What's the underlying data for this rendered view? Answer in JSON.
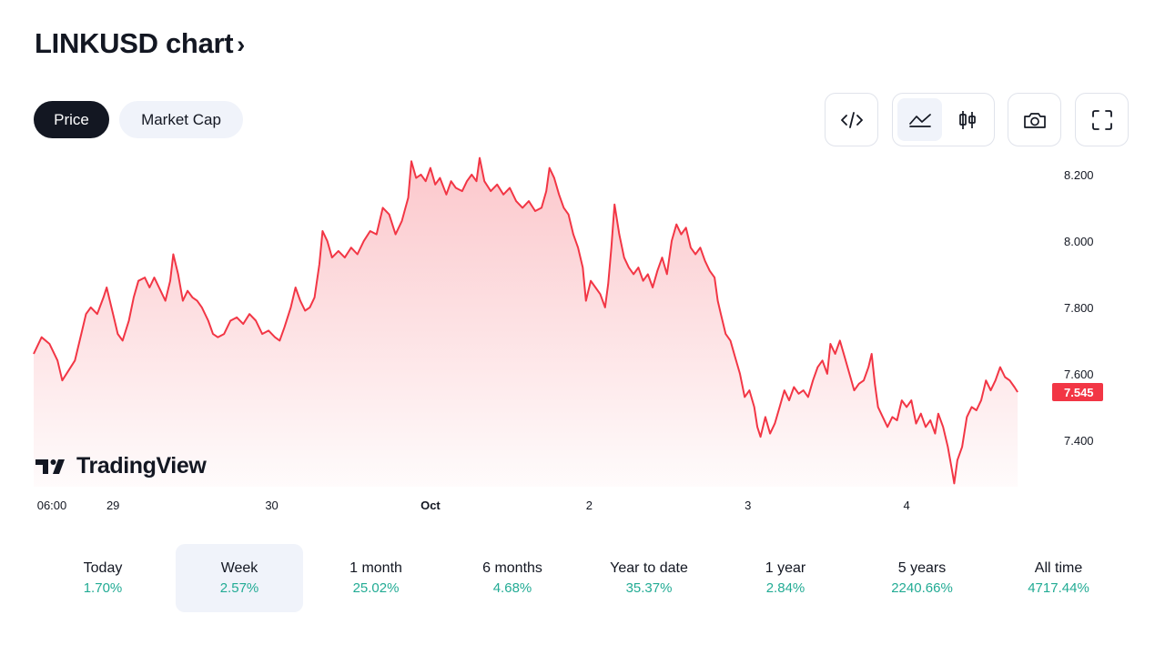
{
  "header": {
    "title": "LINKUSD chart",
    "title_chevron": "›"
  },
  "mode_tabs": [
    {
      "label": "Price",
      "active": true
    },
    {
      "label": "Market Cap",
      "active": false
    }
  ],
  "toolbar": {
    "icons": [
      "embed-code-icon",
      "area-chart-icon",
      "candlestick-chart-icon",
      "camera-icon",
      "fullscreen-icon"
    ],
    "active_chart_type": "area"
  },
  "watermark": {
    "brand": "TradingView"
  },
  "colors": {
    "line": "#f23645",
    "fill_top": "rgba(242,54,69,0.28)",
    "fill_bottom": "rgba(242,54,69,0.02)",
    "price_badge": "#f23645",
    "positive": "#22ab94",
    "active_tab_bg": "#131722",
    "chip_bg": "#f0f3fa"
  },
  "chart_data": {
    "type": "area",
    "title": "",
    "xlabel": "",
    "ylabel": "",
    "ylim": [
      7.26,
      8.26
    ],
    "y_ticks": [
      "8.200",
      "8.000",
      "7.800",
      "7.600",
      "7.400"
    ],
    "y_tick_values": [
      8.2,
      8.0,
      7.8,
      7.6,
      7.4
    ],
    "x_tick_labels": [
      "06:00",
      "29",
      "30",
      "Oct",
      "2",
      "3",
      "4"
    ],
    "x_tick_times": [
      0,
      0.5,
      1.5,
      2.5,
      3.5,
      4.5,
      5.5
    ],
    "x_range": [
      0,
      6.4
    ],
    "last_price": "7.545",
    "last_value": 7.545,
    "series": [
      {
        "points": [
          [
            0.0,
            7.66
          ],
          [
            0.05,
            7.71
          ],
          [
            0.1,
            7.69
          ],
          [
            0.15,
            7.64
          ],
          [
            0.18,
            7.58
          ],
          [
            0.22,
            7.61
          ],
          [
            0.26,
            7.64
          ],
          [
            0.3,
            7.72
          ],
          [
            0.33,
            7.78
          ],
          [
            0.36,
            7.8
          ],
          [
            0.4,
            7.78
          ],
          [
            0.44,
            7.83
          ],
          [
            0.46,
            7.86
          ],
          [
            0.5,
            7.78
          ],
          [
            0.53,
            7.72
          ],
          [
            0.56,
            7.7
          ],
          [
            0.6,
            7.76
          ],
          [
            0.63,
            7.83
          ],
          [
            0.66,
            7.88
          ],
          [
            0.7,
            7.89
          ],
          [
            0.73,
            7.86
          ],
          [
            0.76,
            7.89
          ],
          [
            0.8,
            7.85
          ],
          [
            0.83,
            7.82
          ],
          [
            0.86,
            7.88
          ],
          [
            0.88,
            7.96
          ],
          [
            0.91,
            7.9
          ],
          [
            0.94,
            7.82
          ],
          [
            0.97,
            7.85
          ],
          [
            1.0,
            7.83
          ],
          [
            1.03,
            7.82
          ],
          [
            1.06,
            7.8
          ],
          [
            1.1,
            7.76
          ],
          [
            1.13,
            7.72
          ],
          [
            1.16,
            7.71
          ],
          [
            1.2,
            7.72
          ],
          [
            1.24,
            7.76
          ],
          [
            1.28,
            7.77
          ],
          [
            1.32,
            7.75
          ],
          [
            1.36,
            7.78
          ],
          [
            1.4,
            7.76
          ],
          [
            1.44,
            7.72
          ],
          [
            1.48,
            7.73
          ],
          [
            1.52,
            7.71
          ],
          [
            1.55,
            7.7
          ],
          [
            1.58,
            7.74
          ],
          [
            1.62,
            7.8
          ],
          [
            1.65,
            7.86
          ],
          [
            1.68,
            7.82
          ],
          [
            1.71,
            7.79
          ],
          [
            1.74,
            7.8
          ],
          [
            1.77,
            7.83
          ],
          [
            1.8,
            7.93
          ],
          [
            1.82,
            8.03
          ],
          [
            1.85,
            8.0
          ],
          [
            1.88,
            7.95
          ],
          [
            1.92,
            7.97
          ],
          [
            1.96,
            7.95
          ],
          [
            2.0,
            7.98
          ],
          [
            2.04,
            7.96
          ],
          [
            2.08,
            8.0
          ],
          [
            2.12,
            8.03
          ],
          [
            2.16,
            8.02
          ],
          [
            2.2,
            8.1
          ],
          [
            2.24,
            8.08
          ],
          [
            2.28,
            8.02
          ],
          [
            2.32,
            8.06
          ],
          [
            2.36,
            8.13
          ],
          [
            2.38,
            8.24
          ],
          [
            2.41,
            8.19
          ],
          [
            2.44,
            8.2
          ],
          [
            2.47,
            8.18
          ],
          [
            2.5,
            8.22
          ],
          [
            2.53,
            8.17
          ],
          [
            2.56,
            8.19
          ],
          [
            2.6,
            8.14
          ],
          [
            2.63,
            8.18
          ],
          [
            2.66,
            8.16
          ],
          [
            2.7,
            8.15
          ],
          [
            2.73,
            8.18
          ],
          [
            2.76,
            8.2
          ],
          [
            2.79,
            8.18
          ],
          [
            2.81,
            8.25
          ],
          [
            2.84,
            8.18
          ],
          [
            2.88,
            8.15
          ],
          [
            2.92,
            8.17
          ],
          [
            2.96,
            8.14
          ],
          [
            3.0,
            8.16
          ],
          [
            3.04,
            8.12
          ],
          [
            3.08,
            8.1
          ],
          [
            3.12,
            8.12
          ],
          [
            3.16,
            8.09
          ],
          [
            3.2,
            8.1
          ],
          [
            3.23,
            8.15
          ],
          [
            3.25,
            8.22
          ],
          [
            3.28,
            8.19
          ],
          [
            3.31,
            8.14
          ],
          [
            3.34,
            8.1
          ],
          [
            3.37,
            8.08
          ],
          [
            3.4,
            8.02
          ],
          [
            3.43,
            7.98
          ],
          [
            3.46,
            7.92
          ],
          [
            3.48,
            7.82
          ],
          [
            3.51,
            7.88
          ],
          [
            3.54,
            7.86
          ],
          [
            3.57,
            7.84
          ],
          [
            3.6,
            7.8
          ],
          [
            3.62,
            7.87
          ],
          [
            3.64,
            7.98
          ],
          [
            3.66,
            8.11
          ],
          [
            3.69,
            8.02
          ],
          [
            3.72,
            7.95
          ],
          [
            3.75,
            7.92
          ],
          [
            3.78,
            7.9
          ],
          [
            3.81,
            7.92
          ],
          [
            3.84,
            7.88
          ],
          [
            3.87,
            7.9
          ],
          [
            3.9,
            7.86
          ],
          [
            3.93,
            7.91
          ],
          [
            3.96,
            7.95
          ],
          [
            3.99,
            7.9
          ],
          [
            4.02,
            8.0
          ],
          [
            4.05,
            8.05
          ],
          [
            4.08,
            8.02
          ],
          [
            4.11,
            8.04
          ],
          [
            4.14,
            7.98
          ],
          [
            4.17,
            7.96
          ],
          [
            4.2,
            7.98
          ],
          [
            4.23,
            7.94
          ],
          [
            4.26,
            7.91
          ],
          [
            4.29,
            7.89
          ],
          [
            4.31,
            7.82
          ],
          [
            4.33,
            7.78
          ],
          [
            4.36,
            7.72
          ],
          [
            4.39,
            7.7
          ],
          [
            4.42,
            7.65
          ],
          [
            4.45,
            7.6
          ],
          [
            4.48,
            7.53
          ],
          [
            4.51,
            7.55
          ],
          [
            4.54,
            7.5
          ],
          [
            4.56,
            7.44
          ],
          [
            4.58,
            7.41
          ],
          [
            4.61,
            7.47
          ],
          [
            4.64,
            7.42
          ],
          [
            4.67,
            7.45
          ],
          [
            4.7,
            7.5
          ],
          [
            4.73,
            7.55
          ],
          [
            4.76,
            7.52
          ],
          [
            4.79,
            7.56
          ],
          [
            4.82,
            7.54
          ],
          [
            4.85,
            7.55
          ],
          [
            4.88,
            7.53
          ],
          [
            4.91,
            7.58
          ],
          [
            4.94,
            7.62
          ],
          [
            4.97,
            7.64
          ],
          [
            5.0,
            7.6
          ],
          [
            5.02,
            7.69
          ],
          [
            5.05,
            7.66
          ],
          [
            5.08,
            7.7
          ],
          [
            5.11,
            7.65
          ],
          [
            5.14,
            7.6
          ],
          [
            5.17,
            7.55
          ],
          [
            5.2,
            7.57
          ],
          [
            5.23,
            7.58
          ],
          [
            5.26,
            7.62
          ],
          [
            5.28,
            7.66
          ],
          [
            5.3,
            7.57
          ],
          [
            5.32,
            7.5
          ],
          [
            5.35,
            7.47
          ],
          [
            5.38,
            7.44
          ],
          [
            5.41,
            7.47
          ],
          [
            5.44,
            7.46
          ],
          [
            5.47,
            7.52
          ],
          [
            5.5,
            7.5
          ],
          [
            5.53,
            7.52
          ],
          [
            5.56,
            7.45
          ],
          [
            5.59,
            7.48
          ],
          [
            5.62,
            7.44
          ],
          [
            5.65,
            7.46
          ],
          [
            5.68,
            7.42
          ],
          [
            5.7,
            7.48
          ],
          [
            5.73,
            7.44
          ],
          [
            5.76,
            7.38
          ],
          [
            5.79,
            7.3
          ],
          [
            5.8,
            7.27
          ],
          [
            5.82,
            7.34
          ],
          [
            5.85,
            7.38
          ],
          [
            5.88,
            7.47
          ],
          [
            5.91,
            7.5
          ],
          [
            5.94,
            7.49
          ],
          [
            5.97,
            7.52
          ],
          [
            6.0,
            7.58
          ],
          [
            6.03,
            7.55
          ],
          [
            6.06,
            7.58
          ],
          [
            6.09,
            7.62
          ],
          [
            6.12,
            7.59
          ],
          [
            6.15,
            7.58
          ],
          [
            6.18,
            7.56
          ],
          [
            6.2,
            7.545
          ]
        ]
      }
    ]
  },
  "periods": [
    {
      "label": "Today",
      "value": "1.70%",
      "active": false
    },
    {
      "label": "Week",
      "value": "2.57%",
      "active": true
    },
    {
      "label": "1 month",
      "value": "25.02%",
      "active": false
    },
    {
      "label": "6 months",
      "value": "4.68%",
      "active": false
    },
    {
      "label": "Year to date",
      "value": "35.37%",
      "active": false
    },
    {
      "label": "1 year",
      "value": "2.84%",
      "active": false
    },
    {
      "label": "5 years",
      "value": "2240.66%",
      "active": false
    },
    {
      "label": "All time",
      "value": "4717.44%",
      "active": false
    }
  ]
}
